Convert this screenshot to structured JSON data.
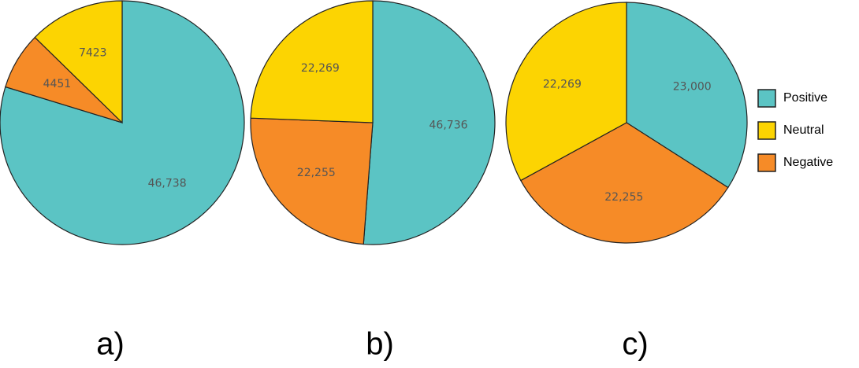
{
  "chart_data": [
    {
      "type": "pie",
      "label": "a)",
      "values": [
        46738,
        4451,
        7423
      ],
      "value_labels": [
        "46,738",
        "4451",
        "7423"
      ],
      "colors": [
        "#5bc4c4",
        "#f68b27",
        "#fcd402"
      ]
    },
    {
      "type": "pie",
      "label": "b)",
      "values": [
        46736,
        22255,
        22269
      ],
      "value_labels": [
        "46,736",
        "22,255",
        "22,269"
      ],
      "colors": [
        "#5bc4c4",
        "#f68b27",
        "#fcd402"
      ]
    },
    {
      "type": "pie",
      "label": "c)",
      "values": [
        23000,
        22255,
        22269
      ],
      "value_labels": [
        "23,000",
        "22,255",
        "22,269"
      ],
      "colors": [
        "#5bc4c4",
        "#f68b27",
        "#fcd402"
      ],
      "categories": [
        "Positive",
        "Negative",
        "Neutral"
      ]
    }
  ]
}
